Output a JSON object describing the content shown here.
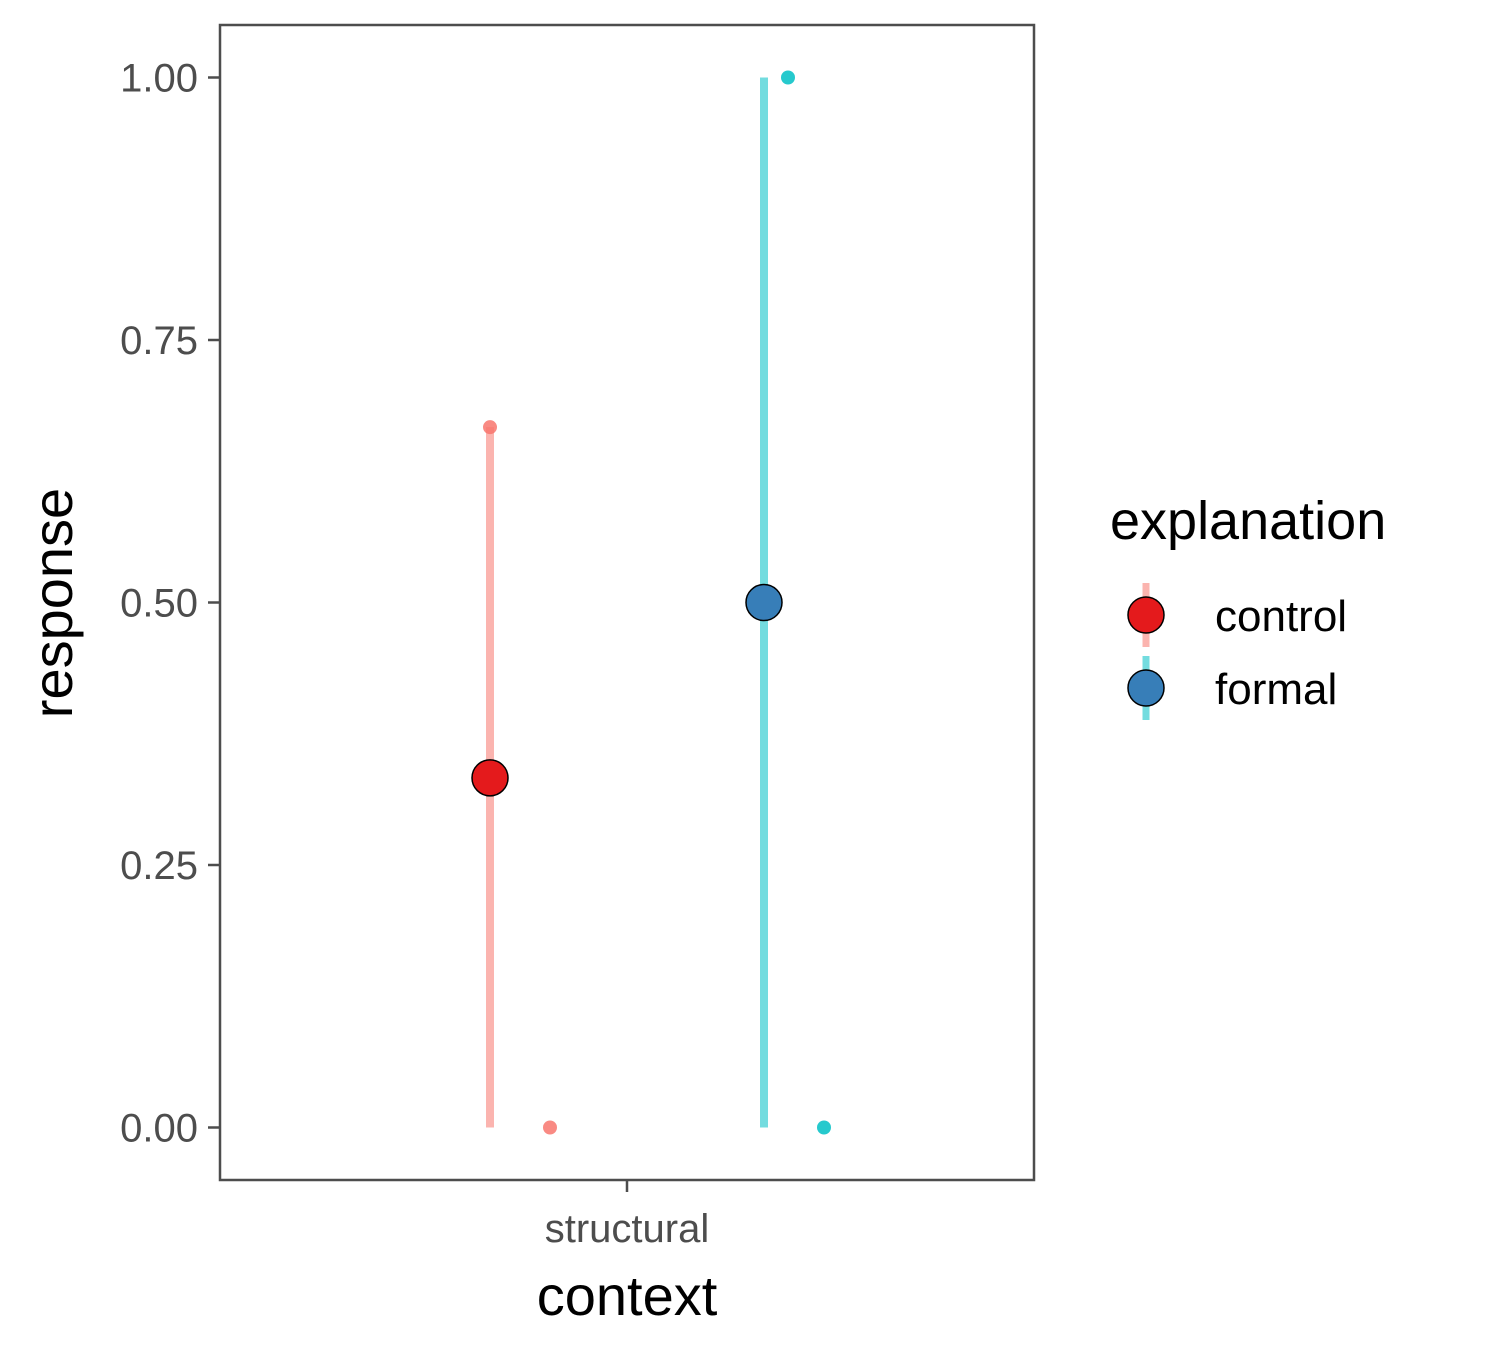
{
  "chart_data": {
    "type": "scatter",
    "xlabel": "context",
    "ylabel": "response",
    "categories": [
      "structural"
    ],
    "ylim": [
      -0.05,
      1.05
    ],
    "y_ticks": [
      0.0,
      0.25,
      0.5,
      0.75,
      1.0
    ],
    "y_tick_labels": [
      "0.00",
      "0.25",
      "0.50",
      "0.75",
      "1.00"
    ],
    "grid": false,
    "legend": {
      "title": "explanation",
      "placement": "right",
      "entries": [
        "control",
        "formal"
      ]
    },
    "series": [
      {
        "name": "control",
        "mean_color": "#E41A1C",
        "range_color": "#F8766D",
        "mean": 0.333,
        "range": [
          0.0,
          0.667
        ],
        "observations": [
          0.667,
          0.0
        ]
      },
      {
        "name": "formal",
        "mean_color": "#377EB8",
        "range_color": "#00BFC4",
        "mean": 0.5,
        "range": [
          0.0,
          1.0
        ],
        "observations": [
          1.0,
          0.0
        ]
      }
    ]
  }
}
